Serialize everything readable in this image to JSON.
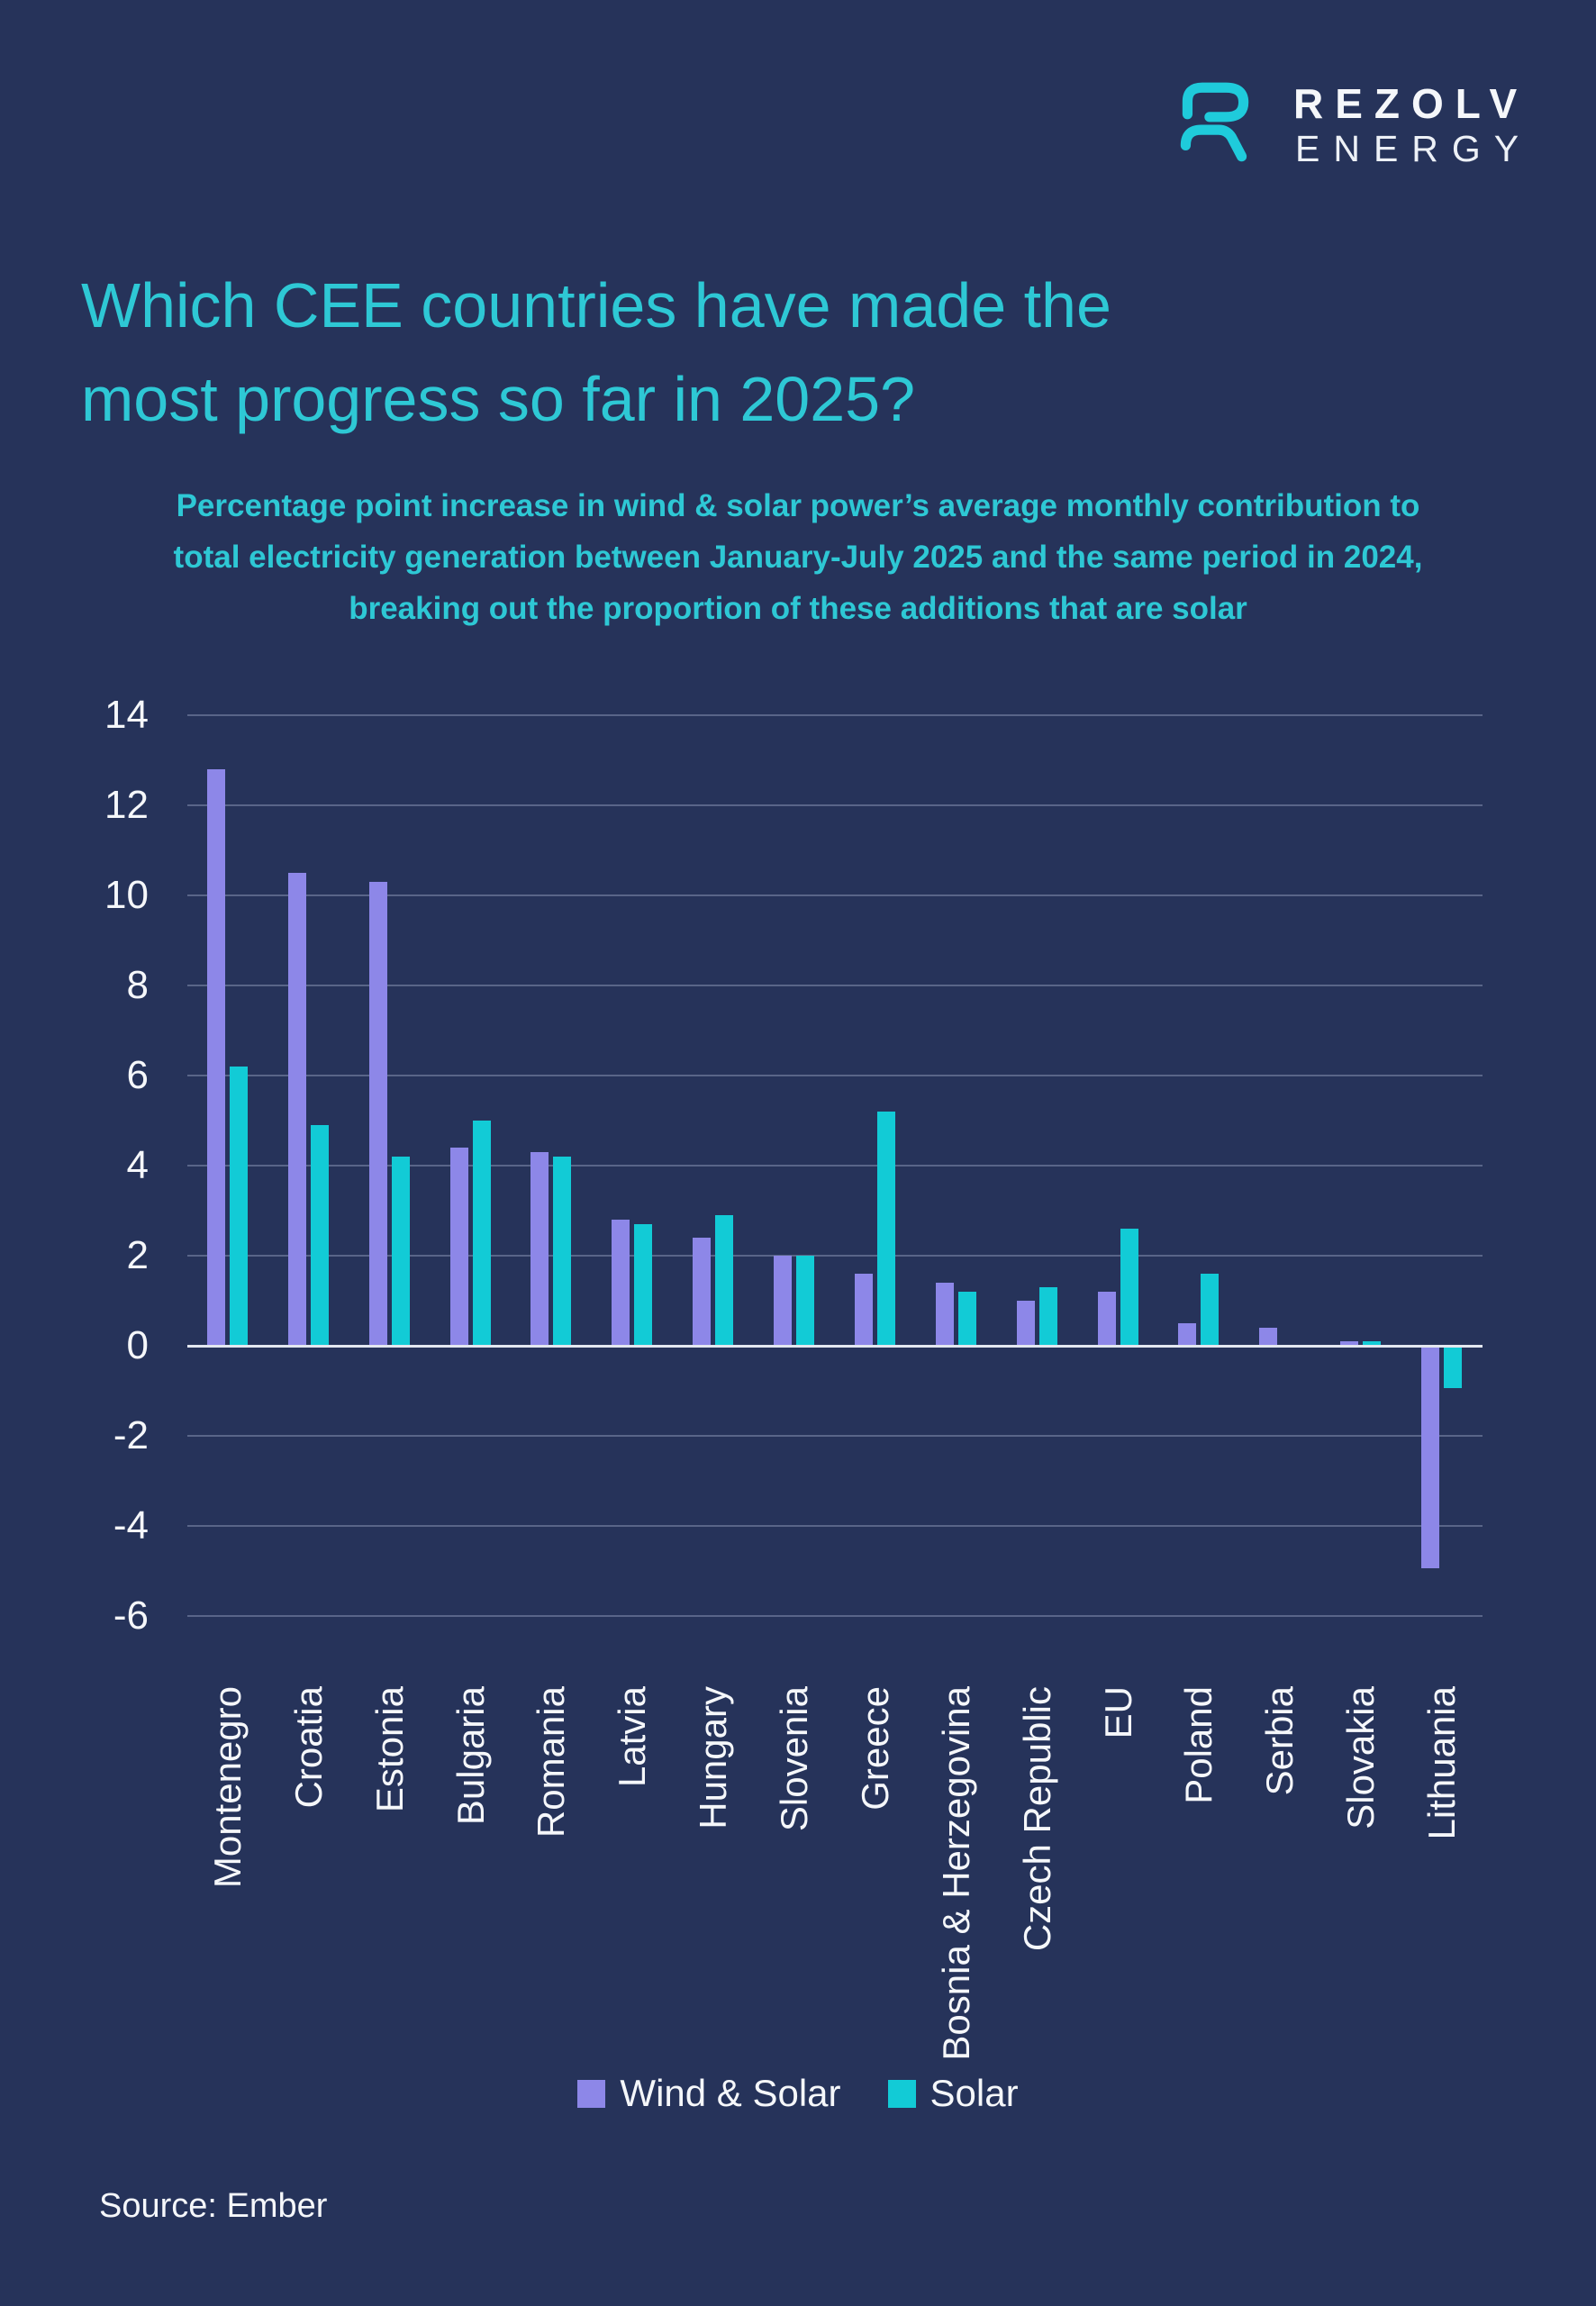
{
  "header": {
    "logo": {
      "brand_top": "REZOLV",
      "brand_bottom": "ENERGY"
    }
  },
  "chart_data": {
    "type": "bar",
    "title": "Which CEE countries have made the most progress so far in 2025?",
    "subtitle": "Percentage point increase in wind & solar power’s average monthly contribution to total electricity generation between January-July 2025 and the same period in 2024, breaking out the proportion of these additions that are solar",
    "categories": [
      "Montenegro",
      "Croatia",
      "Estonia",
      "Bulgaria",
      "Romania",
      "Latvia",
      "Hungary",
      "Slovenia",
      "Greece",
      "Bosnia & Herzegovina",
      "Czech Republic",
      "EU",
      "Poland",
      "Serbia",
      "Slovakia",
      "Lithuania"
    ],
    "series": [
      {
        "name": "Wind & Solar",
        "color": "#8D87E8",
        "values": [
          12.8,
          10.5,
          10.3,
          4.4,
          4.3,
          2.8,
          2.4,
          2.0,
          1.6,
          1.4,
          1.0,
          1.2,
          0.5,
          0.4,
          0.1,
          -4.9
        ]
      },
      {
        "name": "Solar",
        "color": "#12CBD6",
        "values": [
          6.2,
          4.9,
          4.2,
          5.0,
          4.2,
          2.7,
          2.9,
          2.0,
          5.2,
          1.2,
          1.3,
          2.6,
          1.6,
          0.0,
          0.1,
          -0.9
        ]
      }
    ],
    "ylim": [
      -6,
      14
    ],
    "ytick_step": 2,
    "grid": true,
    "legend_position": "bottom",
    "xlabel": "",
    "ylabel": ""
  },
  "colors": {
    "background": "#26335A",
    "heading": "#2EC8D5",
    "wind_solar": "#8D87E8",
    "solar": "#12CBD6",
    "axis_text": "#F5F7FA",
    "logo_icon": "#1FCBDB"
  },
  "footer": {
    "source": "Source: Ember"
  }
}
